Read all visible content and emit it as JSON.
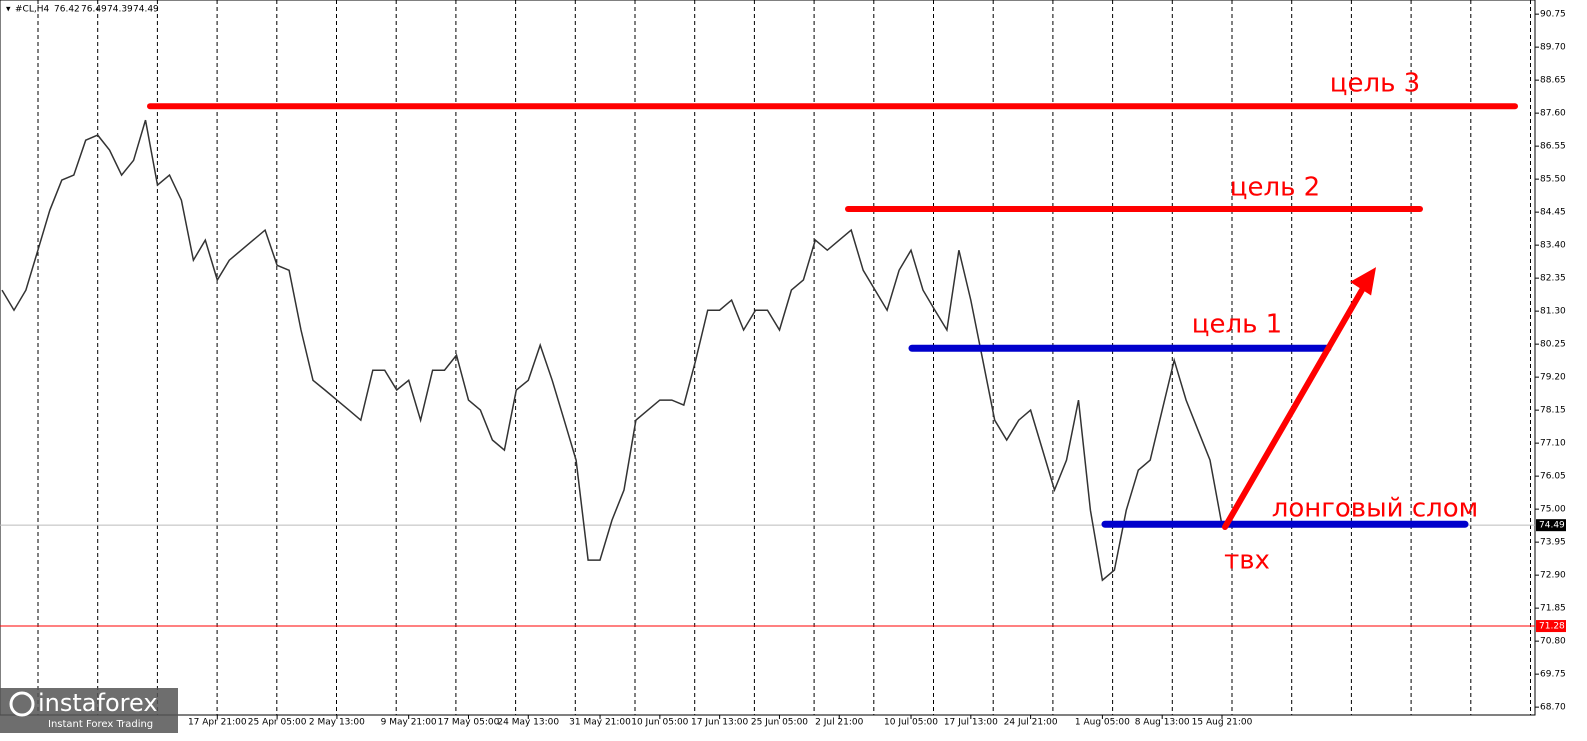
{
  "chart_data": {
    "type": "line",
    "title": "#CL,H4",
    "ohlc": [
      76.42,
      76.49,
      74.39,
      74.49
    ],
    "color": "#333333",
    "categories": [
      null,
      null,
      null,
      null,
      null,
      null,
      null,
      null,
      null,
      null,
      null,
      null,
      null,
      null,
      null,
      null,
      null,
      null,
      "17 Apr 21:00",
      null,
      null,
      null,
      null,
      "25 Apr 05:00",
      null,
      null,
      null,
      null,
      "2 May 13:00",
      null,
      null,
      null,
      null,
      null,
      "9 May 21:00",
      null,
      null,
      null,
      null,
      "17 May 05:00",
      null,
      null,
      null,
      null,
      "24 May 13:00",
      null,
      null,
      null,
      null,
      null,
      "31 May 21:00",
      null,
      null,
      null,
      null,
      "10 Jun 05:00",
      null,
      null,
      null,
      null,
      "17 Jun 13:00",
      null,
      null,
      null,
      null,
      "25 Jun 05:00",
      null,
      null,
      null,
      null,
      "2 Jul 21:00",
      null,
      null,
      null,
      null,
      null,
      "10 Jul 05:00",
      null,
      null,
      null,
      null,
      "17 Jul 13:00",
      null,
      null,
      null,
      null,
      "24 Jul 21:00",
      null,
      null,
      null,
      null,
      null,
      "1 Aug 05:00",
      null,
      null,
      null,
      null,
      "8 Aug 13:00",
      null,
      null,
      null,
      null,
      "15 Aug 21:00"
    ],
    "values": [
      81.97,
      81.33,
      81.97,
      83.24,
      84.51,
      85.47,
      85.63,
      86.74,
      86.9,
      86.42,
      85.63,
      86.1,
      87.38,
      85.31,
      85.63,
      84.83,
      82.92,
      83.56,
      82.29,
      82.92,
      83.24,
      83.56,
      83.88,
      82.76,
      82.6,
      80.7,
      79.1,
      78.79,
      78.47,
      78.15,
      77.83,
      79.42,
      79.42,
      78.79,
      79.1,
      77.83,
      79.42,
      79.42,
      79.9,
      78.47,
      78.15,
      77.2,
      76.88,
      78.79,
      79.1,
      80.22,
      79.1,
      77.83,
      76.56,
      73.38,
      73.38,
      74.65,
      75.61,
      77.83,
      78.15,
      78.47,
      78.47,
      78.31,
      79.74,
      81.33,
      81.33,
      81.65,
      80.7,
      81.33,
      81.33,
      80.7,
      81.97,
      82.29,
      83.56,
      83.24,
      83.56,
      83.88,
      82.6,
      81.97,
      81.33,
      82.6,
      83.24,
      81.97,
      81.33,
      80.7,
      83.24,
      81.65,
      79.74,
      77.83,
      77.2,
      77.83,
      78.15,
      76.88,
      75.61,
      76.56,
      78.47,
      74.97,
      72.74,
      73.06,
      74.97,
      76.24,
      76.56,
      78.15,
      79.74,
      78.47,
      77.51,
      76.56,
      74.49
    ],
    "ylim": [
      68.45,
      91.2
    ],
    "yticks": [
      {
        "value": 68.7,
        "label": "68.70"
      },
      69.75,
      {
        "value": 70.8,
        "label": "70.80"
      },
      71.85,
      {
        "value": 72.9,
        "label": "72.90"
      },
      73.95,
      {
        "value": 75,
        "label": "75.00"
      },
      76.05,
      {
        "value": 77.1,
        "label": "77.10"
      },
      78.15,
      {
        "value": 79.2,
        "label": "79.20"
      },
      80.25,
      {
        "value": 81.3,
        "label": "81.30"
      },
      82.35,
      {
        "value": 83.4,
        "label": "83.40"
      },
      84.45,
      {
        "value": 85.5,
        "label": "85.50"
      },
      86.55,
      {
        "value": 87.6,
        "label": "87.60"
      },
      88.65,
      {
        "value": 89.7,
        "label": "89.70"
      },
      90.75
    ],
    "price_markers": [
      {
        "value": 74.49,
        "color": "#000000"
      },
      {
        "value": 71.28,
        "color": "#ff0000"
      }
    ],
    "levels": [
      {
        "label": "цель 3",
        "value": 87.82,
        "color": "#ff0000"
      },
      {
        "label": "цель 2",
        "value": 84.55,
        "color": "#ff0000"
      },
      {
        "label": "цель 1",
        "value": 80.12,
        "color": "#0000cc"
      },
      {
        "label": "лонговый слом",
        "value": 74.52,
        "color": "#0000cc"
      }
    ],
    "entry_label": "твх",
    "watermark": {
      "name": "instaforex",
      "slogan": "Instant Forex Trading"
    }
  }
}
